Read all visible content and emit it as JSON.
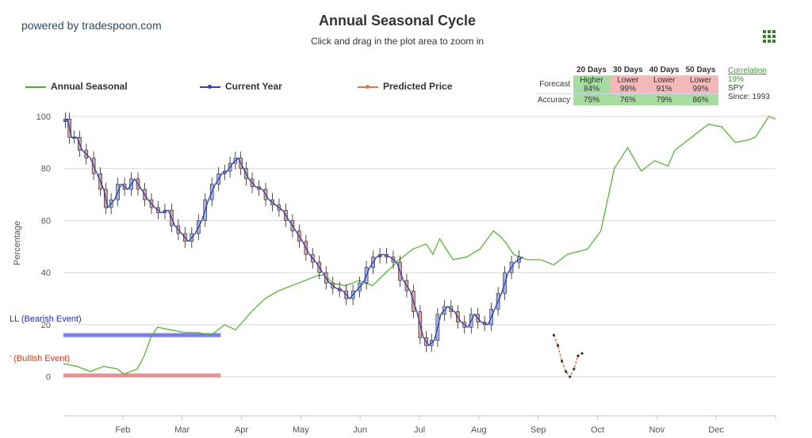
{
  "header": {
    "powered_by": "powered by tradespoon.com",
    "title": "Annual Seasonal Cycle",
    "subtitle": "Click and drag in the plot area to zoom in"
  },
  "legend": {
    "annual": "Annual Seasonal",
    "current": "Current Year",
    "predicted": "Predicted Price"
  },
  "stats": {
    "columns": [
      "20 Days",
      "30 Days",
      "40 Days",
      "50 Days"
    ],
    "forecast_label": "Forecast",
    "accuracy_label": "Accuracy",
    "forecast": [
      {
        "dir": "Higher",
        "pct": "84%"
      },
      {
        "dir": "Lower",
        "pct": "99%"
      },
      {
        "dir": "Lower",
        "pct": "91%"
      },
      {
        "dir": "Lower",
        "pct": "99%"
      }
    ],
    "accuracy": [
      "75%",
      "76%",
      "79%",
      "86%"
    ],
    "correlation_label": "Correlation",
    "correlation_value": "19%",
    "symbol": "SPY",
    "since": "Since: 1993"
  },
  "events": {
    "bearish": "LL (Bearish Event)",
    "bullish": "' (Bullish Event)"
  },
  "colors": {
    "annual": "#4caf2a",
    "current": "#2b3fbf",
    "predicted": "#e8743b",
    "bear_bar": "#7b7bf0",
    "bull_bar": "#e89090",
    "candle_up": "#9fb3e8",
    "candle_down": "#d9a09a",
    "grid": "#d8d8d8"
  },
  "chart_data": {
    "type": "line",
    "title": "Annual Seasonal Cycle",
    "ylabel": "Percentage",
    "ylim": [
      -15,
      100
    ],
    "yticks": [
      0,
      20,
      40,
      60,
      80,
      100
    ],
    "x_month_labels": [
      "Feb",
      "Mar",
      "Apr",
      "May",
      "Jun",
      "Jul",
      "Aug",
      "Sep",
      "Oct",
      "Nov",
      "Dec"
    ],
    "series": [
      {
        "name": "Annual Seasonal",
        "points": [
          [
            0,
            5
          ],
          [
            10,
            4
          ],
          [
            20,
            2
          ],
          [
            30,
            4
          ],
          [
            40,
            3
          ],
          [
            45,
            1
          ],
          [
            55,
            3
          ],
          [
            60,
            8
          ],
          [
            65,
            15
          ],
          [
            70,
            19
          ],
          [
            80,
            18
          ],
          [
            90,
            17
          ],
          [
            100,
            17
          ],
          [
            110,
            16
          ],
          [
            120,
            20
          ],
          [
            128,
            18
          ],
          [
            135,
            22
          ],
          [
            140,
            25
          ],
          [
            150,
            30
          ],
          [
            160,
            33
          ],
          [
            170,
            35
          ],
          [
            180,
            37
          ],
          [
            190,
            39
          ],
          [
            195,
            39
          ],
          [
            200,
            36
          ],
          [
            210,
            35
          ],
          [
            220,
            37
          ],
          [
            230,
            35
          ],
          [
            240,
            40
          ],
          [
            250,
            45
          ],
          [
            260,
            49
          ],
          [
            270,
            51
          ],
          [
            275,
            47
          ],
          [
            280,
            53
          ],
          [
            290,
            45
          ],
          [
            300,
            46
          ],
          [
            310,
            49
          ],
          [
            320,
            56
          ],
          [
            325,
            54
          ],
          [
            330,
            51
          ],
          [
            335,
            47
          ],
          [
            345,
            45
          ],
          [
            355,
            45
          ],
          [
            365,
            43
          ],
          [
            375,
            47
          ],
          [
            390,
            49
          ],
          [
            400,
            56
          ],
          [
            410,
            80
          ],
          [
            420,
            88
          ],
          [
            430,
            79
          ],
          [
            440,
            83
          ],
          [
            450,
            81
          ],
          [
            455,
            87
          ],
          [
            465,
            91
          ],
          [
            475,
            95
          ],
          [
            480,
            97
          ],
          [
            490,
            96
          ],
          [
            500,
            90
          ],
          [
            510,
            91
          ],
          [
            515,
            92
          ],
          [
            520,
            96
          ],
          [
            525,
            100
          ],
          [
            530,
            99
          ]
        ]
      },
      {
        "name": "Current Year",
        "points": [
          [
            0,
            98
          ],
          [
            3,
            99
          ],
          [
            6,
            92
          ],
          [
            10,
            92
          ],
          [
            14,
            87
          ],
          [
            20,
            84
          ],
          [
            25,
            78
          ],
          [
            30,
            72
          ],
          [
            33,
            65
          ],
          [
            38,
            68
          ],
          [
            43,
            74
          ],
          [
            48,
            72
          ],
          [
            53,
            76
          ],
          [
            58,
            72
          ],
          [
            63,
            68
          ],
          [
            68,
            65
          ],
          [
            73,
            63
          ],
          [
            78,
            64
          ],
          [
            83,
            58
          ],
          [
            88,
            55
          ],
          [
            93,
            52
          ],
          [
            98,
            55
          ],
          [
            103,
            60
          ],
          [
            108,
            68
          ],
          [
            113,
            74
          ],
          [
            118,
            78
          ],
          [
            122,
            79
          ],
          [
            126,
            82
          ],
          [
            130,
            84
          ],
          [
            134,
            80
          ],
          [
            138,
            76
          ],
          [
            143,
            73
          ],
          [
            148,
            72
          ],
          [
            153,
            68
          ],
          [
            158,
            66
          ],
          [
            163,
            64
          ],
          [
            168,
            60
          ],
          [
            173,
            56
          ],
          [
            178,
            52
          ],
          [
            183,
            47
          ],
          [
            188,
            44
          ],
          [
            193,
            40
          ],
          [
            198,
            36
          ],
          [
            203,
            34
          ],
          [
            208,
            33
          ],
          [
            213,
            30
          ],
          [
            218,
            33
          ],
          [
            223,
            36
          ],
          [
            228,
            42
          ],
          [
            233,
            46
          ],
          [
            238,
            47
          ],
          [
            243,
            46
          ],
          [
            248,
            44
          ],
          [
            253,
            37
          ],
          [
            258,
            33
          ],
          [
            263,
            25
          ],
          [
            268,
            15
          ],
          [
            272,
            12
          ],
          [
            276,
            14
          ],
          [
            281,
            24
          ],
          [
            286,
            27
          ],
          [
            291,
            25
          ],
          [
            296,
            21
          ],
          [
            301,
            19
          ],
          [
            306,
            24
          ],
          [
            311,
            21
          ],
          [
            316,
            20
          ],
          [
            321,
            26
          ],
          [
            326,
            32
          ],
          [
            331,
            40
          ],
          [
            336,
            44
          ],
          [
            342,
            46
          ]
        ]
      },
      {
        "name": "Predicted Price",
        "points": [
          [
            365,
            16
          ],
          [
            368,
            12
          ],
          [
            371,
            6
          ],
          [
            374,
            2
          ],
          [
            377,
            0
          ],
          [
            380,
            3
          ],
          [
            383,
            8
          ],
          [
            386,
            9
          ]
        ]
      }
    ],
    "events": [
      {
        "name": "LL (Bearish Event)",
        "y": 16,
        "x_from": 0,
        "x_to": 117
      },
      {
        "name": "' (Bullish Event)",
        "y": 0.5,
        "x_from": 0,
        "x_to": 117
      }
    ],
    "grid": true,
    "legend": "top-left"
  }
}
